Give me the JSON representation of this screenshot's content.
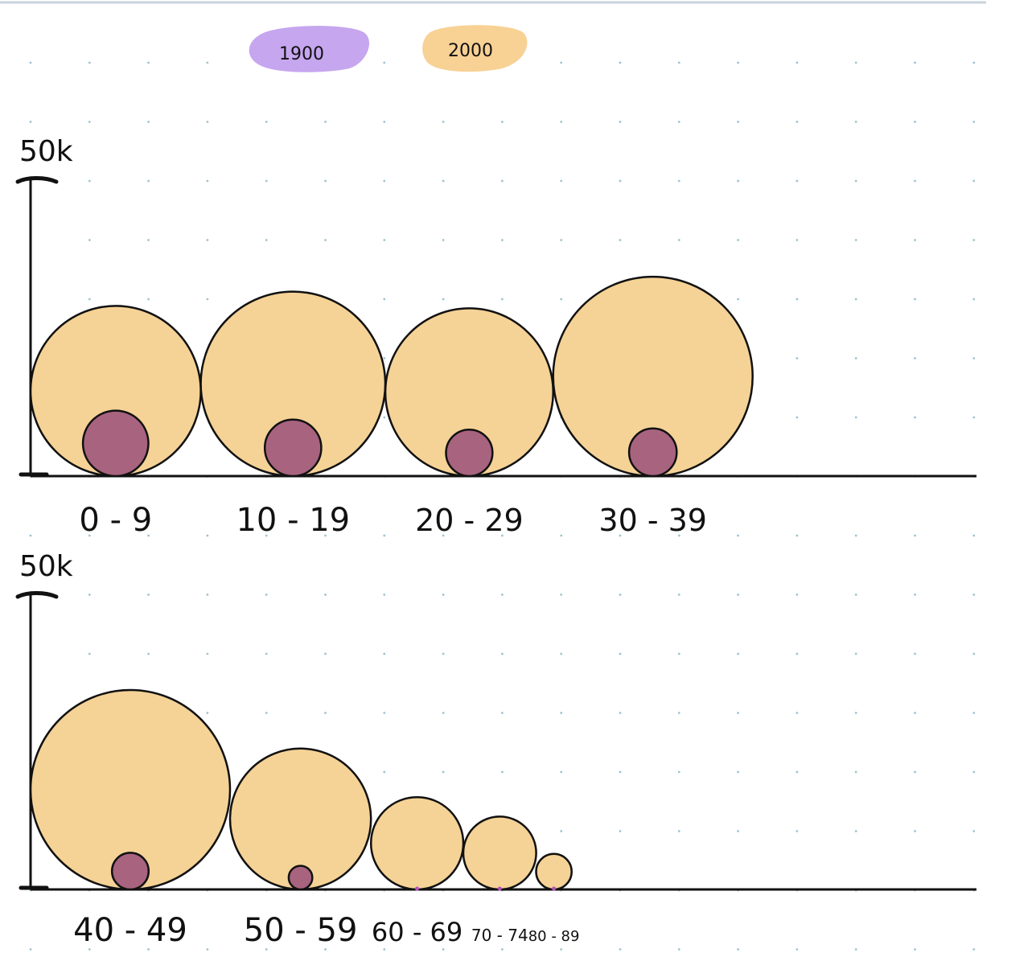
{
  "chart_data": {
    "type": "bubble",
    "legend": {
      "placement": "top-center",
      "entries": [
        {
          "label": "1900",
          "color": "#c6a6ef"
        },
        {
          "label": "2000",
          "color": "#f8d194"
        }
      ]
    },
    "colors": {
      "series_1900": "#a8637f",
      "series_2000": "#f5d296",
      "stroke": "#111111",
      "grid_dot": "#9ec3cf"
    },
    "panels": [
      {
        "y_max_label": "50k",
        "y_max": 50000,
        "categories": [
          "0 - 9",
          "10 - 19",
          "20 - 29",
          "30 - 39"
        ],
        "series": [
          {
            "name": "2000",
            "values": [
              28600,
              31000,
              28200,
              33500
            ]
          },
          {
            "name": "1900",
            "values": [
              11000,
              9500,
              7800,
              8000
            ]
          }
        ]
      },
      {
        "y_max_label": "50k",
        "y_max": 50000,
        "categories": [
          "40 - 49",
          "50 - 59",
          "60 - 69",
          "70 - 74",
          "80 - 89"
        ],
        "series": [
          {
            "name": "2000",
            "values": [
              33700,
              23800,
              15600,
              12300,
              6000
            ]
          },
          {
            "name": "1900",
            "values": [
              6200,
              4000,
              0,
              0,
              0
            ]
          }
        ]
      }
    ]
  }
}
